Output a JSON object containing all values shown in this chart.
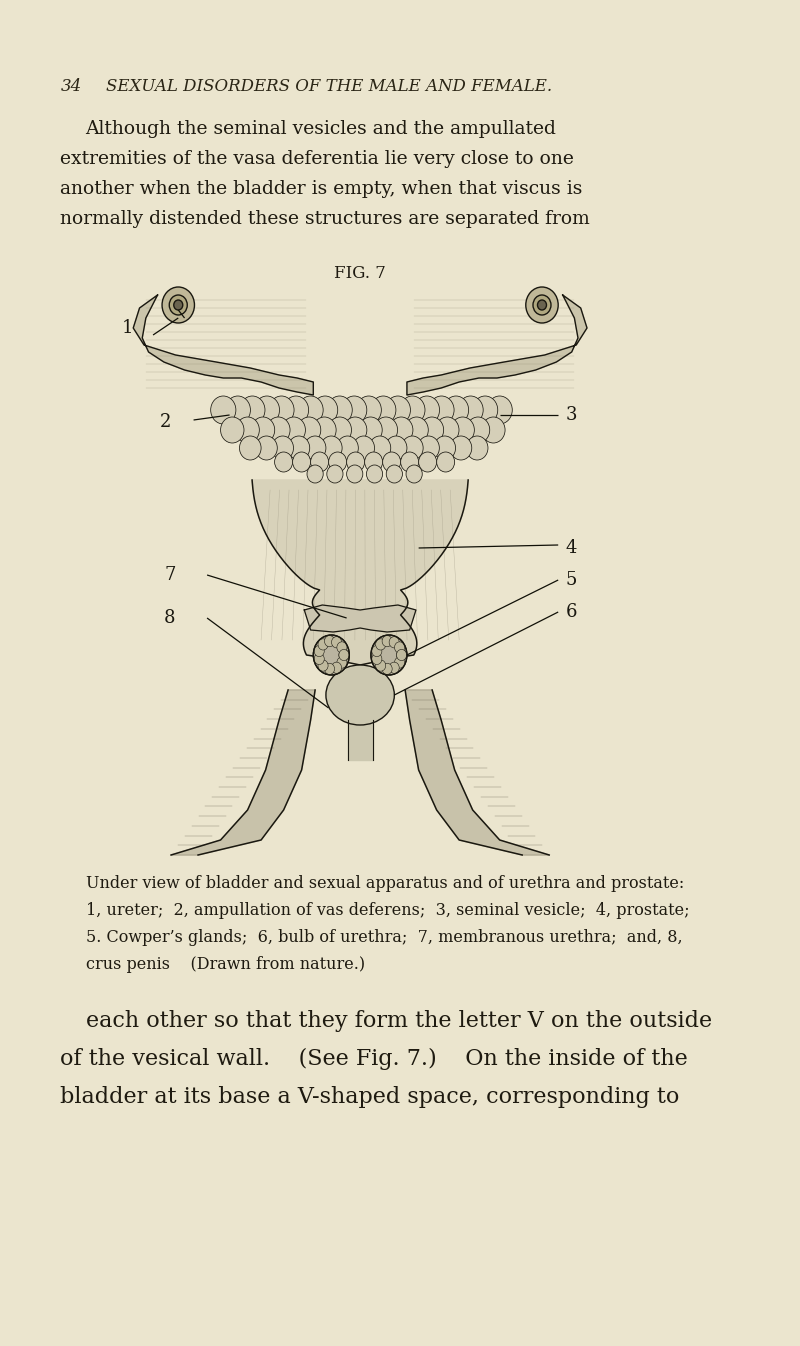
{
  "background_color": "#EBE5CE",
  "page_number": "34",
  "header_text": "SEXUAL DISORDERS OF THE MALE AND FEMALE.",
  "body_text_top": [
    "Although the seminal vesicles and the ampullated",
    "extremities of the vasa deferentia lie very close to one",
    "another when the bladder is empty, when that viscus is",
    "normally distended these structures are separated from"
  ],
  "fig_caption": "FIG. 7",
  "caption_text": [
    "Under view of bladder and sexual apparatus and of urethra and prostate:",
    "1, ureter;  2, ampullation of vas deferens;  3, seminal vesicle;  4, prostate;",
    "5. Cowper’s glands;  6, bulb of urethra;  7, membranous urethra;  and, 8,",
    "crus penis    (Drawn from nature.)"
  ],
  "body_text_bottom": [
    "each other so that they form the letter V on the outside",
    "of the vesical wall.    (See Fig. 7.)    On the inside of the",
    "bladder at its base a V-shaped space, corresponding to"
  ],
  "text_color": "#1e1a10",
  "header_color": "#2a2515",
  "draw_color": "#1a1810",
  "fill_bladder": "#d8d2bb",
  "fill_light": "#ddd8c2",
  "fill_gland": "#c8c2aa",
  "fill_dark": "#b0aa95"
}
